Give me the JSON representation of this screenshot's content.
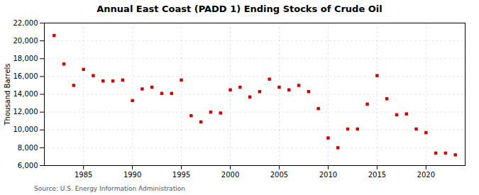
{
  "chart_data": {
    "type": "scatter",
    "title": "Annual East Coast (PADD 1) Ending Stocks of Crude Oil",
    "ylabel": "Thousand Barrels",
    "caption": "Source: U.S. Energy Information Administration",
    "color": "#cc0000",
    "marker": "square",
    "grid": true,
    "xlim": [
      1981,
      2024
    ],
    "xticks": [
      1985,
      1990,
      1995,
      2000,
      2005,
      2010,
      2015,
      2020
    ],
    "ylim": [
      6000,
      22000
    ],
    "yticks": [
      {
        "value": 6000,
        "label": "6,000"
      },
      {
        "value": 8000,
        "label": "8,000"
      },
      {
        "value": 10000,
        "label": "10,000"
      },
      {
        "value": 12000,
        "label": "12,000"
      },
      {
        "value": 14000,
        "label": "14,000"
      },
      {
        "value": 16000,
        "label": "16,000"
      },
      {
        "value": 18000,
        "label": "18,000"
      },
      {
        "value": 20000,
        "label": "20,000"
      },
      {
        "value": 22000,
        "label": "22,000"
      }
    ],
    "x": [
      1982,
      1983,
      1984,
      1985,
      1986,
      1987,
      1988,
      1989,
      1990,
      1991,
      1992,
      1993,
      1994,
      1995,
      1996,
      1997,
      1998,
      1999,
      2000,
      2001,
      2002,
      2003,
      2004,
      2005,
      2006,
      2007,
      2008,
      2009,
      2010,
      2011,
      2012,
      2013,
      2014,
      2015,
      2016,
      2017,
      2018,
      2019,
      2020,
      2021,
      2022,
      2023
    ],
    "values": [
      20600,
      17400,
      15000,
      16800,
      16100,
      15500,
      15500,
      15600,
      13300,
      14600,
      14800,
      14100,
      14100,
      15600,
      11600,
      10900,
      12000,
      11900,
      14500,
      14800,
      13700,
      14300,
      15700,
      14800,
      14500,
      15000,
      14300,
      12400,
      9100,
      8000,
      10100,
      10100,
      12900,
      16100,
      13500,
      11700,
      11800,
      10100,
      9700,
      7400,
      7400,
      7200
    ]
  }
}
